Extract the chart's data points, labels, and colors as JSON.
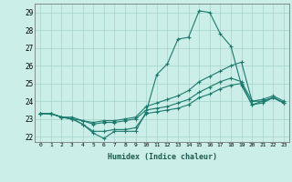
{
  "xlabel": "Humidex (Indice chaleur)",
  "ylabel": "",
  "bg_color": "#cceee8",
  "grid_color": "#aad8d0",
  "line_color": "#1a7a6e",
  "xlim": [
    -0.5,
    23.5
  ],
  "ylim": [
    21.7,
    29.5
  ],
  "yticks": [
    22,
    23,
    24,
    25,
    26,
    27,
    28,
    29
  ],
  "xticks": [
    0,
    1,
    2,
    3,
    4,
    5,
    6,
    7,
    8,
    9,
    10,
    11,
    12,
    13,
    14,
    15,
    16,
    17,
    18,
    19,
    20,
    21,
    22,
    23
  ],
  "series": [
    [
      23.3,
      23.3,
      23.1,
      23.0,
      22.7,
      22.2,
      21.9,
      22.3,
      22.3,
      22.3,
      23.4,
      25.5,
      26.1,
      27.5,
      27.6,
      29.1,
      29.0,
      27.8,
      27.1,
      24.9,
      23.8,
      23.9,
      24.2,
      23.9
    ],
    [
      23.3,
      23.3,
      23.1,
      23.1,
      22.9,
      22.7,
      22.8,
      22.8,
      22.9,
      23.0,
      23.5,
      23.6,
      23.7,
      23.9,
      24.1,
      24.5,
      24.8,
      25.1,
      25.3,
      25.1,
      24.0,
      24.0,
      24.2,
      23.9
    ],
    [
      23.3,
      23.3,
      23.1,
      23.0,
      22.7,
      22.3,
      22.3,
      22.4,
      22.4,
      22.5,
      23.3,
      23.4,
      23.5,
      23.6,
      23.8,
      24.2,
      24.4,
      24.7,
      24.9,
      25.0,
      23.8,
      24.0,
      24.2,
      23.9
    ],
    [
      23.3,
      23.3,
      23.1,
      23.0,
      22.9,
      22.8,
      22.9,
      22.9,
      23.0,
      23.1,
      23.7,
      23.9,
      24.1,
      24.3,
      24.6,
      25.1,
      25.4,
      25.7,
      26.0,
      26.2,
      24.0,
      24.1,
      24.3,
      24.0
    ]
  ]
}
